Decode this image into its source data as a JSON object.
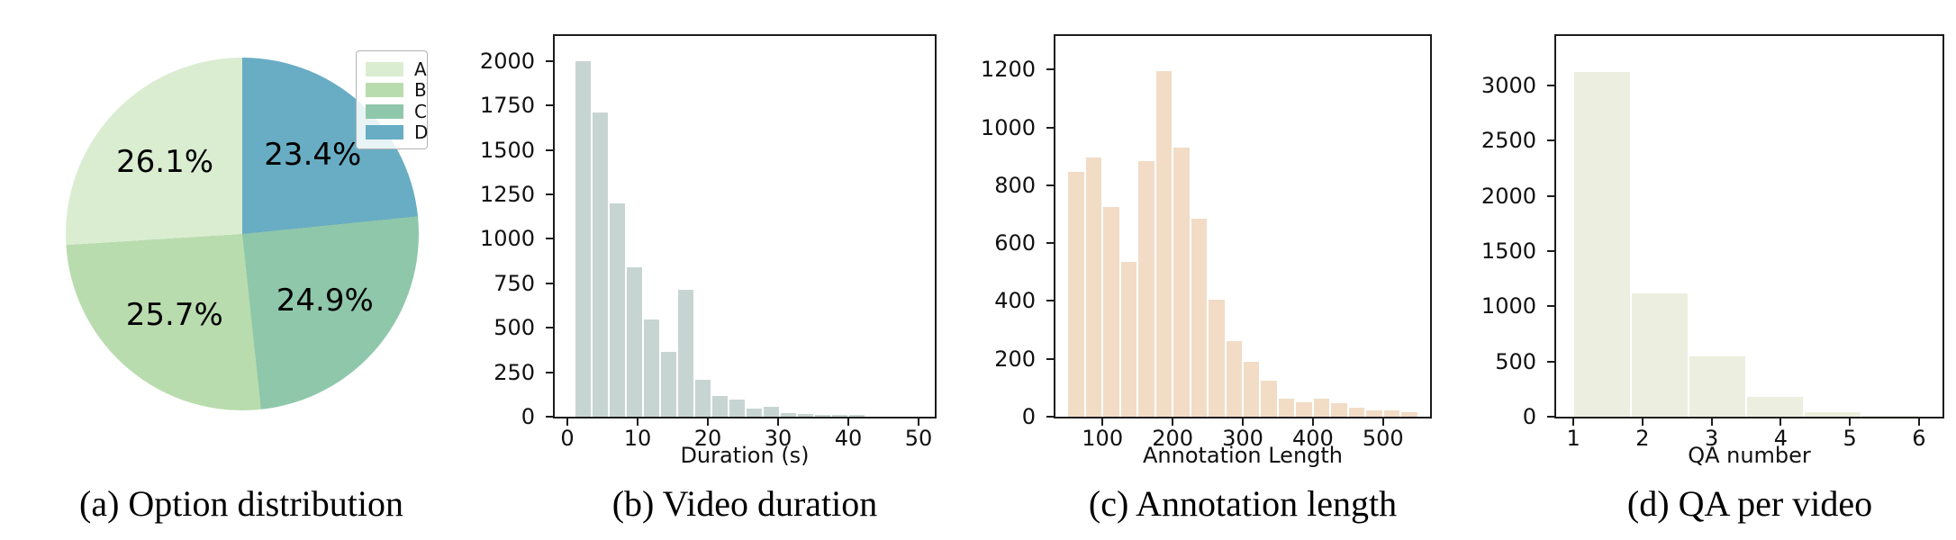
{
  "figure": {
    "background": "#ffffff",
    "axes_line_color": "#1c1c1c"
  },
  "chart_data": [
    {
      "type": "pie",
      "title": "(a) Option distribution",
      "labels": [
        "A",
        "B",
        "C",
        "D"
      ],
      "values": [
        26.1,
        25.7,
        24.9,
        23.4
      ],
      "value_labels": [
        "26.1%",
        "25.7%",
        "24.9%",
        "23.4%"
      ],
      "colors": [
        "#daedd1",
        "#b9dcae",
        "#8fc7ab",
        "#68adc4"
      ],
      "start_angle": 90,
      "direction": "counterclockwise",
      "legend_position": "upper right"
    },
    {
      "type": "bar",
      "title": "(b) Video duration",
      "xlabel": "Duration (s)",
      "bin_start": 1.0,
      "bin_width": 2.435,
      "values": [
        2000,
        1710,
        1200,
        840,
        545,
        365,
        715,
        205,
        115,
        95,
        45,
        55,
        18,
        15,
        12,
        12,
        12
      ],
      "xticks": [
        0,
        10,
        20,
        30,
        40,
        50
      ],
      "yticks": [
        0,
        250,
        500,
        750,
        1000,
        1250,
        1500,
        1750,
        2000
      ],
      "xlim": [
        -1.8,
        52.3
      ],
      "ylim": [
        0,
        2140
      ],
      "bar_color": "#c7d5d2",
      "grid": false
    },
    {
      "type": "bar",
      "title": "(c) Annotation length",
      "xlabel": "Annotation Length",
      "bin_start": 50,
      "bin_width": 25,
      "values": [
        845,
        895,
        725,
        535,
        885,
        1195,
        930,
        685,
        405,
        260,
        190,
        125,
        62,
        50,
        63,
        47,
        31,
        21,
        23,
        16
      ],
      "xticks": [
        100,
        200,
        300,
        400,
        500
      ],
      "yticks": [
        0,
        200,
        400,
        600,
        800,
        1000,
        1200
      ],
      "xlim": [
        33,
        567
      ],
      "ylim": [
        0,
        1316
      ],
      "bar_color": "#f2dcc6",
      "grid": false
    },
    {
      "type": "bar",
      "title": "(d) QA per video",
      "xlabel": "QA number",
      "bin_start": 1.0,
      "bin_width": 0.8333,
      "values": [
        3120,
        1120,
        545,
        180,
        42,
        8
      ],
      "xticks": [
        1,
        2,
        3,
        4,
        5,
        6
      ],
      "yticks": [
        0,
        500,
        1000,
        1500,
        2000,
        2500,
        3000
      ],
      "xlim": [
        0.75,
        6.34
      ],
      "ylim": [
        0,
        3450
      ],
      "bar_color": "#ecefdf",
      "grid": false
    }
  ]
}
